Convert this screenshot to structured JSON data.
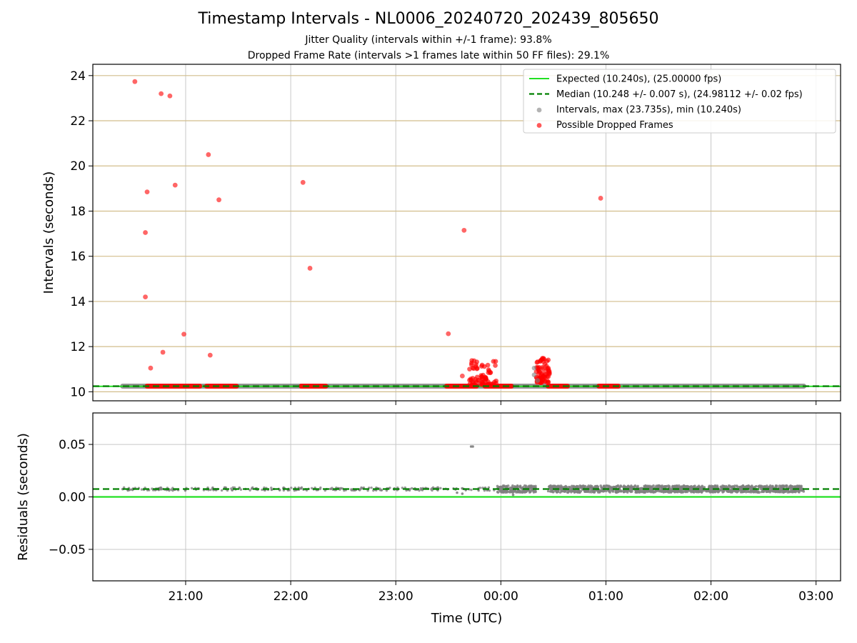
{
  "title": "Timestamp Intervals - NL0006_20240720_202439_805650",
  "subtitle1": "Jitter Quality (intervals within +/-1 frame): 93.8%",
  "subtitle2": "Dropped Frame Rate (intervals >1 frames late within 50 FF files): 29.1%",
  "colors": {
    "expected": "#22e022",
    "median": "#008000",
    "intervals": "#808080",
    "dropped": "#ff0000",
    "grid_top": "#d2be8c",
    "grid_bottom": "#c8c8c8"
  },
  "chart_data": [
    {
      "type": "scatter",
      "ylabel": "Intervals (seconds)",
      "ylim": [
        9.6,
        24.5
      ],
      "yticks": [
        10,
        12,
        14,
        16,
        18,
        20,
        22,
        24
      ],
      "xlim": [
        "20:07",
        "03:14"
      ],
      "xticks": [
        "21:00",
        "22:00",
        "23:00",
        "00:00",
        "01:00",
        "02:00",
        "03:00"
      ],
      "grid": true,
      "legend_position": "top-right",
      "legend": [
        "Expected (10.240s), (25.00000 fps)",
        "Median (10.248 +/- 0.007 s), (24.98112 +/- 0.02 fps)",
        "Intervals, max (23.735s), min (10.240s)",
        "Possible Dropped Frames"
      ],
      "expected_value": 10.24,
      "median_value": 10.248,
      "intervals_range": [
        "20:24",
        "02:53"
      ],
      "intervals_value": 10.248,
      "dropped_segments": [
        {
          "from": "20:38",
          "to": "21:08",
          "y": 10.248
        },
        {
          "from": "21:12",
          "to": "21:29",
          "y": 10.248
        },
        {
          "from": "22:06",
          "to": "22:20",
          "y": 10.248
        },
        {
          "from": "23:29",
          "to": "23:46",
          "y": 10.248
        },
        {
          "from": "23:51",
          "to": "00:06",
          "y": 10.248
        },
        {
          "from": "00:27",
          "to": "00:38",
          "y": 10.248
        },
        {
          "from": "00:56",
          "to": "01:07",
          "y": 10.248
        }
      ],
      "dropped_clusters": [
        {
          "from": "23:42",
          "to": "23:58",
          "ymin": 10.3,
          "ymax": 11.4
        },
        {
          "from": "00:20",
          "to": "00:28",
          "ymin": 10.4,
          "ymax": 11.5
        }
      ],
      "dropped_outliers": [
        [
          "20:31",
          23.735
        ],
        [
          "20:46",
          23.2
        ],
        [
          "20:51",
          23.1
        ],
        [
          "21:13",
          20.5
        ],
        [
          "20:38",
          18.85
        ],
        [
          "20:54",
          19.15
        ],
        [
          "21:19",
          18.5
        ],
        [
          "20:37",
          17.05
        ],
        [
          "20:37",
          14.2
        ],
        [
          "20:59",
          12.55
        ],
        [
          "20:47",
          11.75
        ],
        [
          "20:40",
          11.05
        ],
        [
          "21:14",
          11.62
        ],
        [
          "22:07",
          19.27
        ],
        [
          "22:11",
          15.47
        ],
        [
          "23:30",
          12.57
        ],
        [
          "23:39",
          17.15
        ],
        [
          "23:38",
          10.7
        ],
        [
          "00:57",
          18.57
        ]
      ]
    },
    {
      "type": "scatter",
      "xlabel": "Time (UTC)",
      "ylabel": "Residuals (seconds)",
      "ylim": [
        -0.08,
        0.08
      ],
      "yticks": [
        "0.05",
        "0.00",
        "−0.05"
      ],
      "ytick_values": [
        0.05,
        0.0,
        -0.05
      ],
      "xticks": [
        "21:00",
        "22:00",
        "23:00",
        "00:00",
        "01:00",
        "02:00",
        "03:00"
      ],
      "grid": true,
      "expected_value": 0.0,
      "median_value": 0.0075,
      "residual_band_sparse": [
        "20:24",
        "23:58"
      ],
      "residual_band_dense": [
        "23:58",
        "02:53"
      ],
      "residual_gap": [
        "00:20",
        "00:27"
      ],
      "residual_center": 0.0075,
      "residual_spread": 0.0025,
      "residual_outliers": [
        [
          "23:43",
          0.048
        ],
        [
          "23:44",
          0.048
        ],
        [
          "23:38",
          0.003
        ],
        [
          "23:35",
          0.004
        ],
        [
          "00:07",
          0.002
        ]
      ]
    }
  ]
}
